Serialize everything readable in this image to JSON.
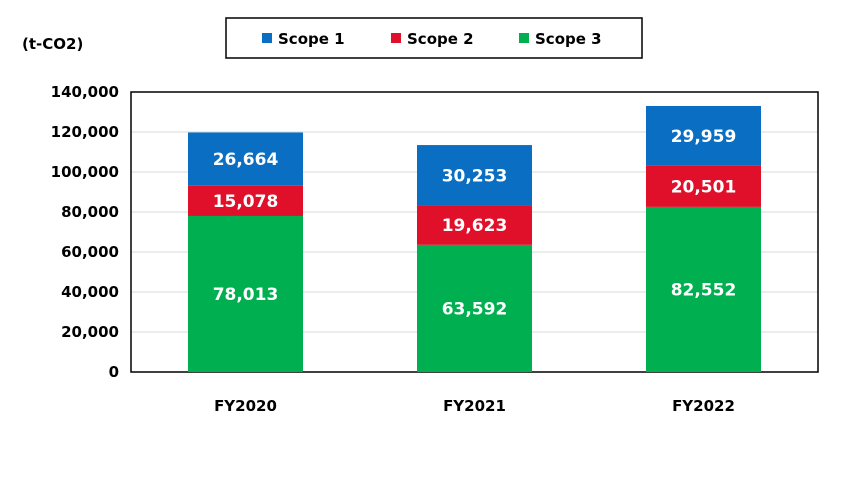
{
  "chart_data": {
    "type": "bar",
    "stacked": true,
    "unit_label": "(t-CO2)",
    "categories": [
      "FY2020",
      "FY2021",
      "FY2022"
    ],
    "series": [
      {
        "name": "Scope 3",
        "color": "#00b050",
        "values": [
          78013,
          63592,
          82552
        ],
        "labels": [
          "78,013",
          "63,592",
          "82,552"
        ]
      },
      {
        "name": "Scope 2",
        "color": "#e0102b",
        "values": [
          15078,
          19623,
          20501
        ],
        "labels": [
          "15,078",
          "19,623",
          "20,501"
        ]
      },
      {
        "name": "Scope 1",
        "color": "#0a6fc2",
        "values": [
          26664,
          30253,
          29959
        ],
        "labels": [
          "26,664",
          "30,253",
          "29,959"
        ]
      }
    ],
    "ylim": [
      0,
      140000
    ],
    "yticks": [
      0,
      20000,
      40000,
      60000,
      80000,
      100000,
      120000,
      140000
    ],
    "ytick_labels": [
      "0",
      "20,000",
      "40,000",
      "60,000",
      "80,000",
      "100,000",
      "120,000",
      "140,000"
    ],
    "grid": true,
    "legend_position": "top-center"
  }
}
